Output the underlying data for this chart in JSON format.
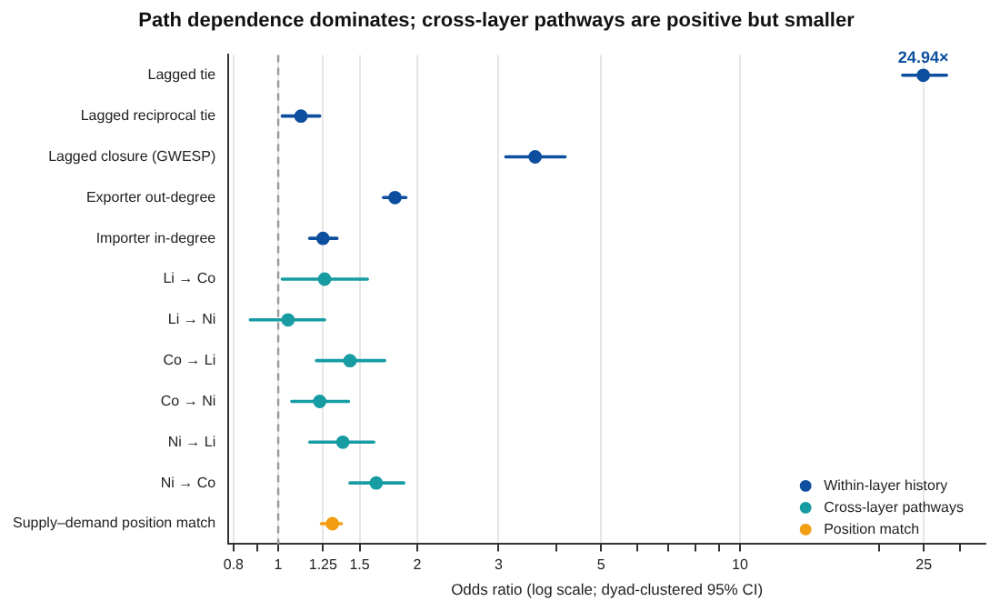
{
  "chart_data": {
    "type": "scatter",
    "orientation": "horizontal",
    "title": "Path dependence dominates; cross-layer pathways are positive but smaller",
    "xlabel": "Odds ratio (log scale; dyad-clustered 95% CI)",
    "categories": [
      "Lagged tie",
      "Lagged reciprocal tie",
      "Lagged closure (GWESP)",
      "Exporter out-degree",
      "Importer in-degree",
      "Li → Co",
      "Li → Ni",
      "Co → Li",
      "Co → Ni",
      "Ni → Li",
      "Ni → Co",
      "Supply–demand position match"
    ],
    "series": [
      {
        "name": "Within-layer history",
        "color": "#0d4f9e",
        "values": [
          24.94,
          1.12,
          3.6,
          1.79,
          1.25,
          null,
          null,
          null,
          null,
          null,
          null,
          null
        ],
        "errors": [
          [
            22.5,
            28.0
          ],
          [
            1.02,
            1.23
          ],
          [
            3.11,
            4.18
          ],
          [
            1.69,
            1.89
          ],
          [
            1.17,
            1.34
          ],
          null,
          null,
          null,
          null,
          null,
          null,
          null
        ],
        "value_labels": [
          "24.94×",
          null,
          null,
          null,
          null,
          null,
          null,
          null,
          null,
          null,
          null,
          null
        ]
      },
      {
        "name": "Cross-layer pathways",
        "color": "#179ca3",
        "values": [
          null,
          null,
          null,
          null,
          null,
          1.26,
          1.05,
          1.43,
          1.23,
          1.38,
          1.63,
          null
        ],
        "errors": [
          null,
          null,
          null,
          null,
          null,
          [
            1.02,
            1.56
          ],
          [
            0.87,
            1.26
          ],
          [
            1.21,
            1.7
          ],
          [
            1.07,
            1.42
          ],
          [
            1.17,
            1.61
          ],
          [
            1.43,
            1.87
          ],
          null
        ]
      },
      {
        "name": "Position match",
        "color": "#f29d12",
        "values": [
          null,
          null,
          null,
          null,
          null,
          null,
          null,
          null,
          null,
          null,
          null,
          1.31
        ],
        "errors": [
          null,
          null,
          null,
          null,
          null,
          null,
          null,
          null,
          null,
          null,
          null,
          [
            1.24,
            1.37
          ]
        ]
      }
    ],
    "log": "x",
    "xlim": [
      0.78,
      34
    ],
    "xticks": [
      0.8,
      {
        "value": 0.9,
        "label": null
      },
      1,
      1.25,
      1.5,
      2,
      3,
      {
        "value": 4,
        "label": null
      },
      5,
      {
        "value": 6,
        "label": null
      },
      {
        "value": 7,
        "label": null
      },
      {
        "value": 8,
        "label": null
      },
      {
        "value": 9,
        "label": null
      },
      10,
      {
        "value": 20,
        "label": null
      },
      25,
      {
        "value": 30,
        "label": null
      }
    ],
    "ref_lines": [
      {
        "axis": "x",
        "value": 1,
        "label": null,
        "color": "#999999",
        "line_style": "dashed"
      }
    ],
    "grid": "x",
    "legend": "bottom right",
    "marker": "circle"
  }
}
